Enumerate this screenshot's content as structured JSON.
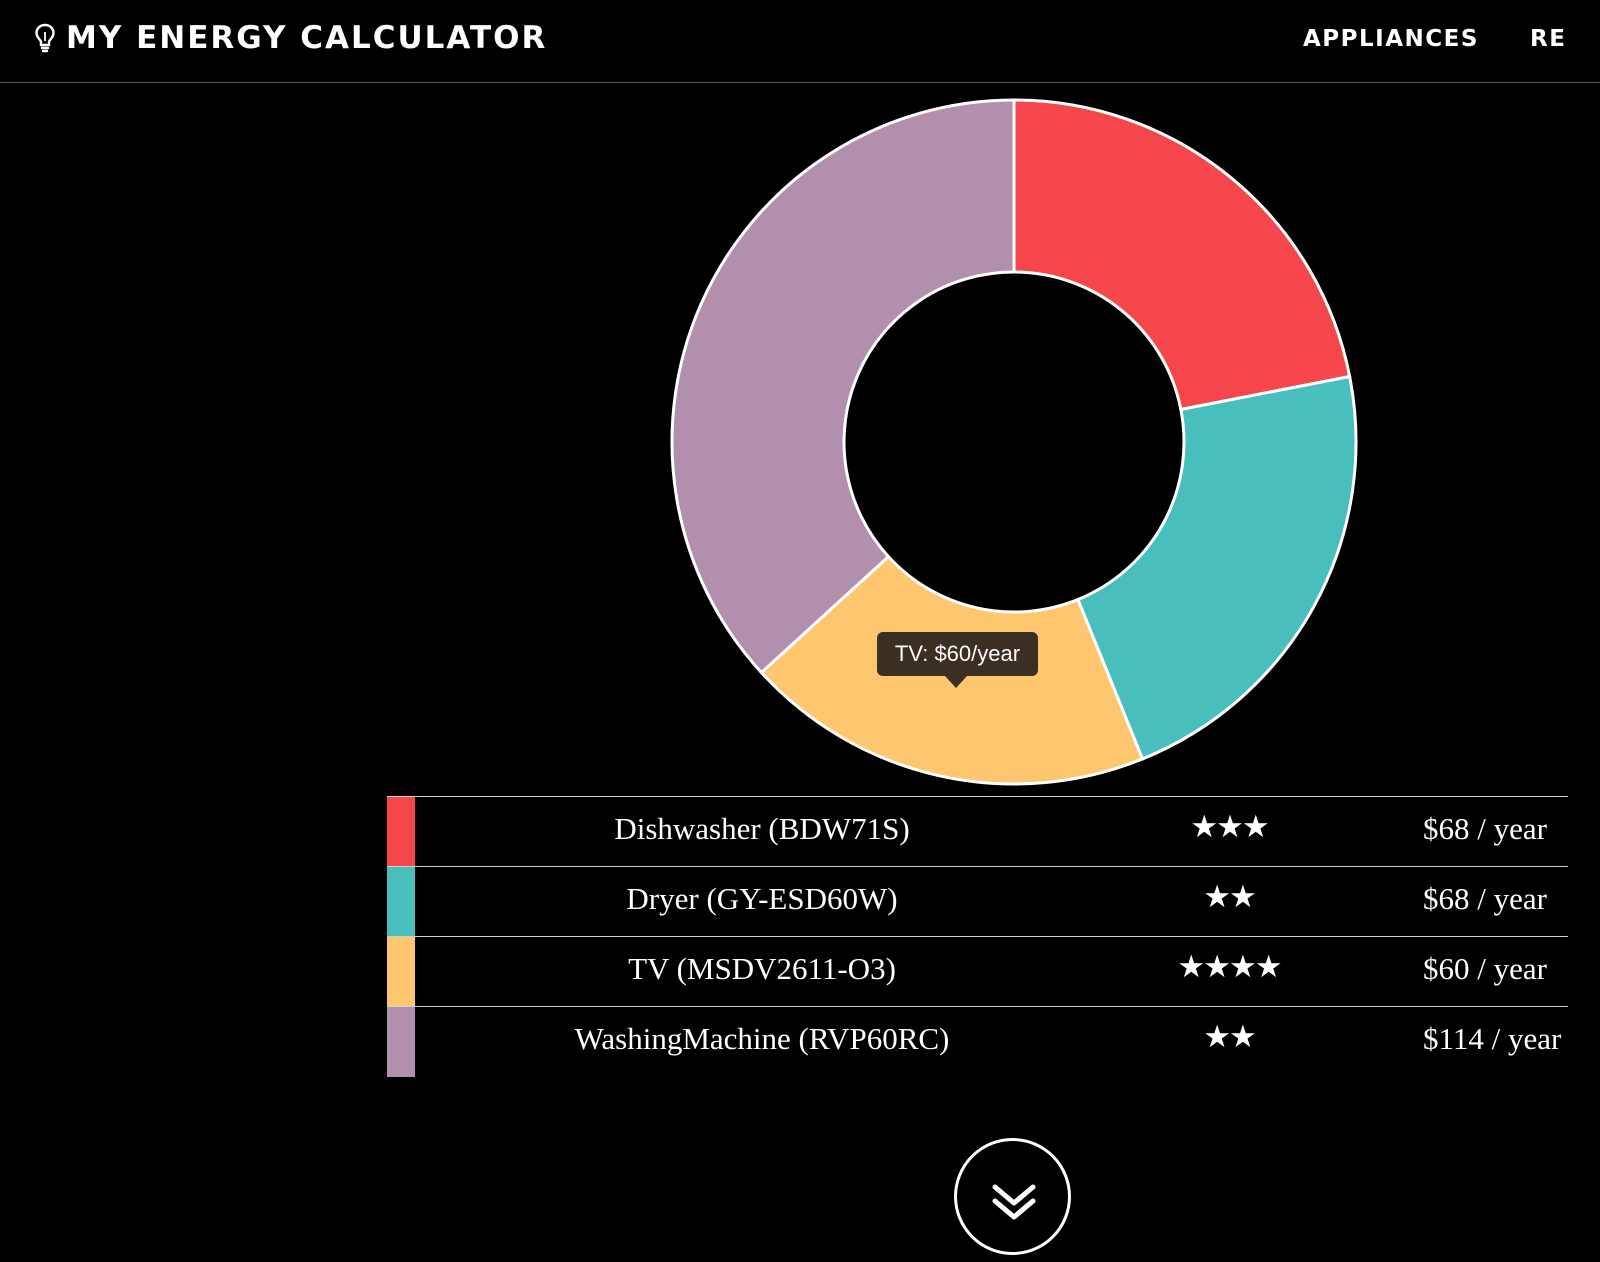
{
  "nav": {
    "brand": "MY ENERGY CALCULATOR",
    "brand_icon": "lightbulb-icon",
    "links": [
      "APPLIANCES",
      "RESULTS"
    ]
  },
  "tooltip": "TV: $60/year",
  "chart_data": {
    "type": "pie",
    "variant": "donut",
    "unit": "$ / year",
    "segments": [
      {
        "label": "Dishwasher (BDW71S)",
        "value": 68,
        "color": "#f5474b"
      },
      {
        "label": "Dryer (GY-ESD60W)",
        "value": 68,
        "color": "#48bfbc"
      },
      {
        "label": "TV (MSDV2611-O3)",
        "value": 60,
        "color": "#fec66f"
      },
      {
        "label": "WashingMachine (RVP60RC)",
        "value": 114,
        "color": "#b28fad"
      }
    ]
  },
  "appliances": [
    {
      "name": "Dishwasher (BDW71S)",
      "stars": "★★★",
      "rating": 3,
      "cost": "$68 / year",
      "color": "#f5474b"
    },
    {
      "name": "Dryer (GY-ESD60W)",
      "stars": "★★",
      "rating": 2,
      "cost": "$68 / year",
      "color": "#48bfbc"
    },
    {
      "name": "TV (MSDV2611-O3)",
      "stars": "★★★★",
      "rating": 4,
      "cost": "$60 / year",
      "color": "#fec66f"
    },
    {
      "name": "WashingMachine (RVP60RC)",
      "stars": "★★",
      "rating": 2,
      "cost": "$114 / year",
      "color": "#b28fad"
    }
  ],
  "scroll_icon": "double-chevron-down-icon"
}
